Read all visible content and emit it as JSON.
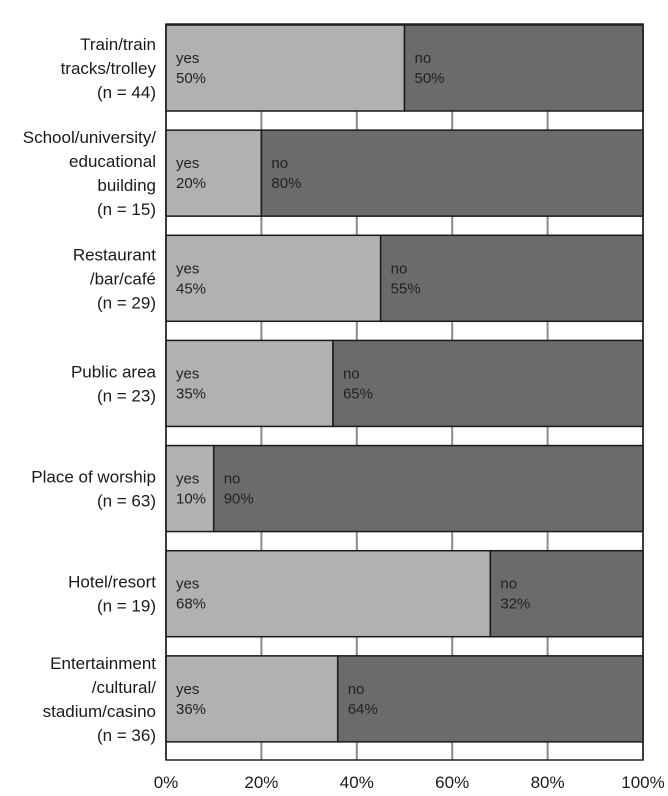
{
  "chart_data": {
    "type": "bar",
    "orientation": "horizontal",
    "stacked": true,
    "percent_scale": true,
    "categories": [
      [
        "Train/train",
        "tracks/trolley",
        "(n = 44)"
      ],
      [
        "School/university/",
        "educational",
        "building",
        "(n = 15)"
      ],
      [
        "Restaurant",
        "/bar/café",
        "(n = 29)"
      ],
      [
        "Public area",
        "(n = 23)"
      ],
      [
        "Place of worship",
        "(n = 63)"
      ],
      [
        "Hotel/resort",
        "(n = 19)"
      ],
      [
        "Entertainment",
        "/cultural/",
        "stadium/casino",
        "(n = 36)"
      ]
    ],
    "series": [
      {
        "name": "yes",
        "values": [
          50,
          20,
          45,
          35,
          10,
          68,
          36
        ],
        "labels": [
          "50%",
          "20%",
          "45%",
          "35%",
          "10%",
          "68%",
          "36%"
        ],
        "color": "#b1b1b3"
      },
      {
        "name": "no",
        "values": [
          50,
          80,
          55,
          65,
          90,
          32,
          64
        ],
        "labels": [
          "50%",
          "80%",
          "55%",
          "65%",
          "90%",
          "32%",
          "64%"
        ],
        "color": "#6b6b6d"
      }
    ],
    "xlim": [
      0,
      100
    ],
    "xticks": [
      "0%",
      "20%",
      "40%",
      "60%",
      "80%",
      "100%"
    ],
    "grid": true,
    "title": "",
    "xlabel": "",
    "ylabel": "",
    "legend": "none"
  }
}
